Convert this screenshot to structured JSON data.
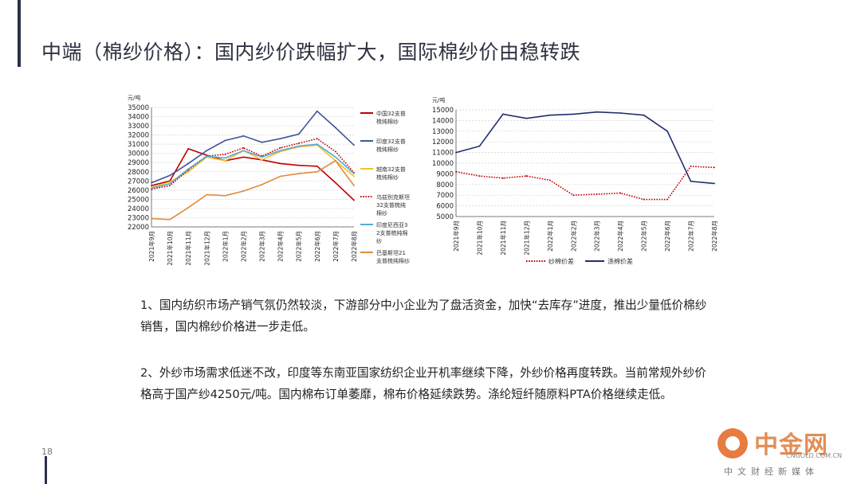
{
  "title": "中端（棉纱价格）：国内纱价跌幅扩大，国际棉纱价由稳转跌",
  "page_number": "18",
  "paragraphs": [
    "1、国内纺织市场产销气氛仍然较淡，下游部分中小企业为了盘活资金，加快“去库存”进度，推出少量低价棉纱销售，国内棉纱价格进一步走低。",
    "2、外纱市场需求低迷不改，印度等东南亚国家纺织企业开机率继续下降，外纱价格再度转跌。当前常规外纱价格高于国产纱4250元/吨。国内棉布订单萎靡，棉布价格延续跌势。涤纶短纤随原料PTA价格继续走低。"
  ],
  "watermark": {
    "brand": "中金网",
    "url": "CNGOLD.COM.CN",
    "media": "中文财经新媒体"
  },
  "chart_data": [
    {
      "type": "line",
      "unit_label": "元/吨",
      "ylim": [
        22000,
        35000
      ],
      "yticks": [
        22000,
        23000,
        24000,
        25000,
        26000,
        27000,
        28000,
        29000,
        30000,
        31000,
        32000,
        33000,
        34000,
        35000
      ],
      "categories": [
        "2021年9月",
        "2021年10月",
        "2021年11月",
        "2021年12月",
        "2022年1月",
        "2022年2月",
        "2022年3月",
        "2022年4月",
        "2022年5月",
        "2022年6月",
        "2022年7月",
        "2022年8月"
      ],
      "grid": true,
      "legend_position": "right",
      "series": [
        {
          "name": "中国32支普梳纯棉纱",
          "color": "#c00000",
          "dash": "solid",
          "values": [
            26500,
            27000,
            30500,
            29800,
            29200,
            29600,
            29300,
            28900,
            28700,
            28600,
            26800,
            24900
          ]
        },
        {
          "name": "印度32支普梳纯棉纱",
          "color": "#3f5597",
          "dash": "solid",
          "values": [
            26800,
            27600,
            28900,
            30300,
            31400,
            31900,
            31200,
            31600,
            32100,
            34600,
            32800,
            30900
          ]
        },
        {
          "name": "越南32支普梳纯棉纱",
          "color": "#f2c12e",
          "dash": "solid",
          "values": [
            26300,
            26900,
            28000,
            29600,
            29200,
            30300,
            29300,
            30200,
            30700,
            30900,
            29200,
            27500
          ]
        },
        {
          "name": "乌兹别克斯坦32支普梳纯棉纱",
          "color": "#c00000",
          "dash": "dot",
          "values": [
            26100,
            26500,
            28200,
            29700,
            29900,
            30600,
            29700,
            30600,
            31100,
            31600,
            30200,
            27900
          ]
        },
        {
          "name": "印度尼西亚32支普梳纯棉纱",
          "color": "#5aa9d6",
          "dash": "solid",
          "values": [
            26200,
            26700,
            28300,
            29700,
            29500,
            30300,
            29600,
            30300,
            30800,
            31000,
            29600,
            27800
          ]
        },
        {
          "name": "巴基斯坦21支普梳纯棉纱",
          "color": "#e08a3c",
          "dash": "solid",
          "values": [
            22900,
            22800,
            24100,
            25500,
            25400,
            25900,
            26600,
            27500,
            27800,
            28000,
            29200,
            26500
          ]
        }
      ]
    },
    {
      "type": "line",
      "unit_label": "元/吨",
      "ylim": [
        5000,
        15000
      ],
      "yticks": [
        5000,
        6000,
        7000,
        8000,
        9000,
        10000,
        11000,
        12000,
        13000,
        14000,
        15000
      ],
      "categories": [
        "2021年9月",
        "2021年10月",
        "2021年11月",
        "2021年12月",
        "2022年1月",
        "2022年2月",
        "2022年3月",
        "2022年4月",
        "2022年5月",
        "2022年6月",
        "2022年7月",
        "2022年8月"
      ],
      "grid": true,
      "legend_position": "bottom",
      "series": [
        {
          "name": "纱棉价差",
          "color": "#c00000",
          "dash": "dot",
          "values": [
            9200,
            8800,
            8600,
            8800,
            8400,
            7000,
            7100,
            7200,
            6600,
            6600,
            9700,
            9600
          ]
        },
        {
          "name": "涤棉价差",
          "color": "#1f2f6b",
          "dash": "solid",
          "values": [
            11000,
            11600,
            14600,
            14200,
            14500,
            14600,
            14800,
            14700,
            14500,
            13000,
            8300,
            8100
          ]
        }
      ]
    }
  ]
}
